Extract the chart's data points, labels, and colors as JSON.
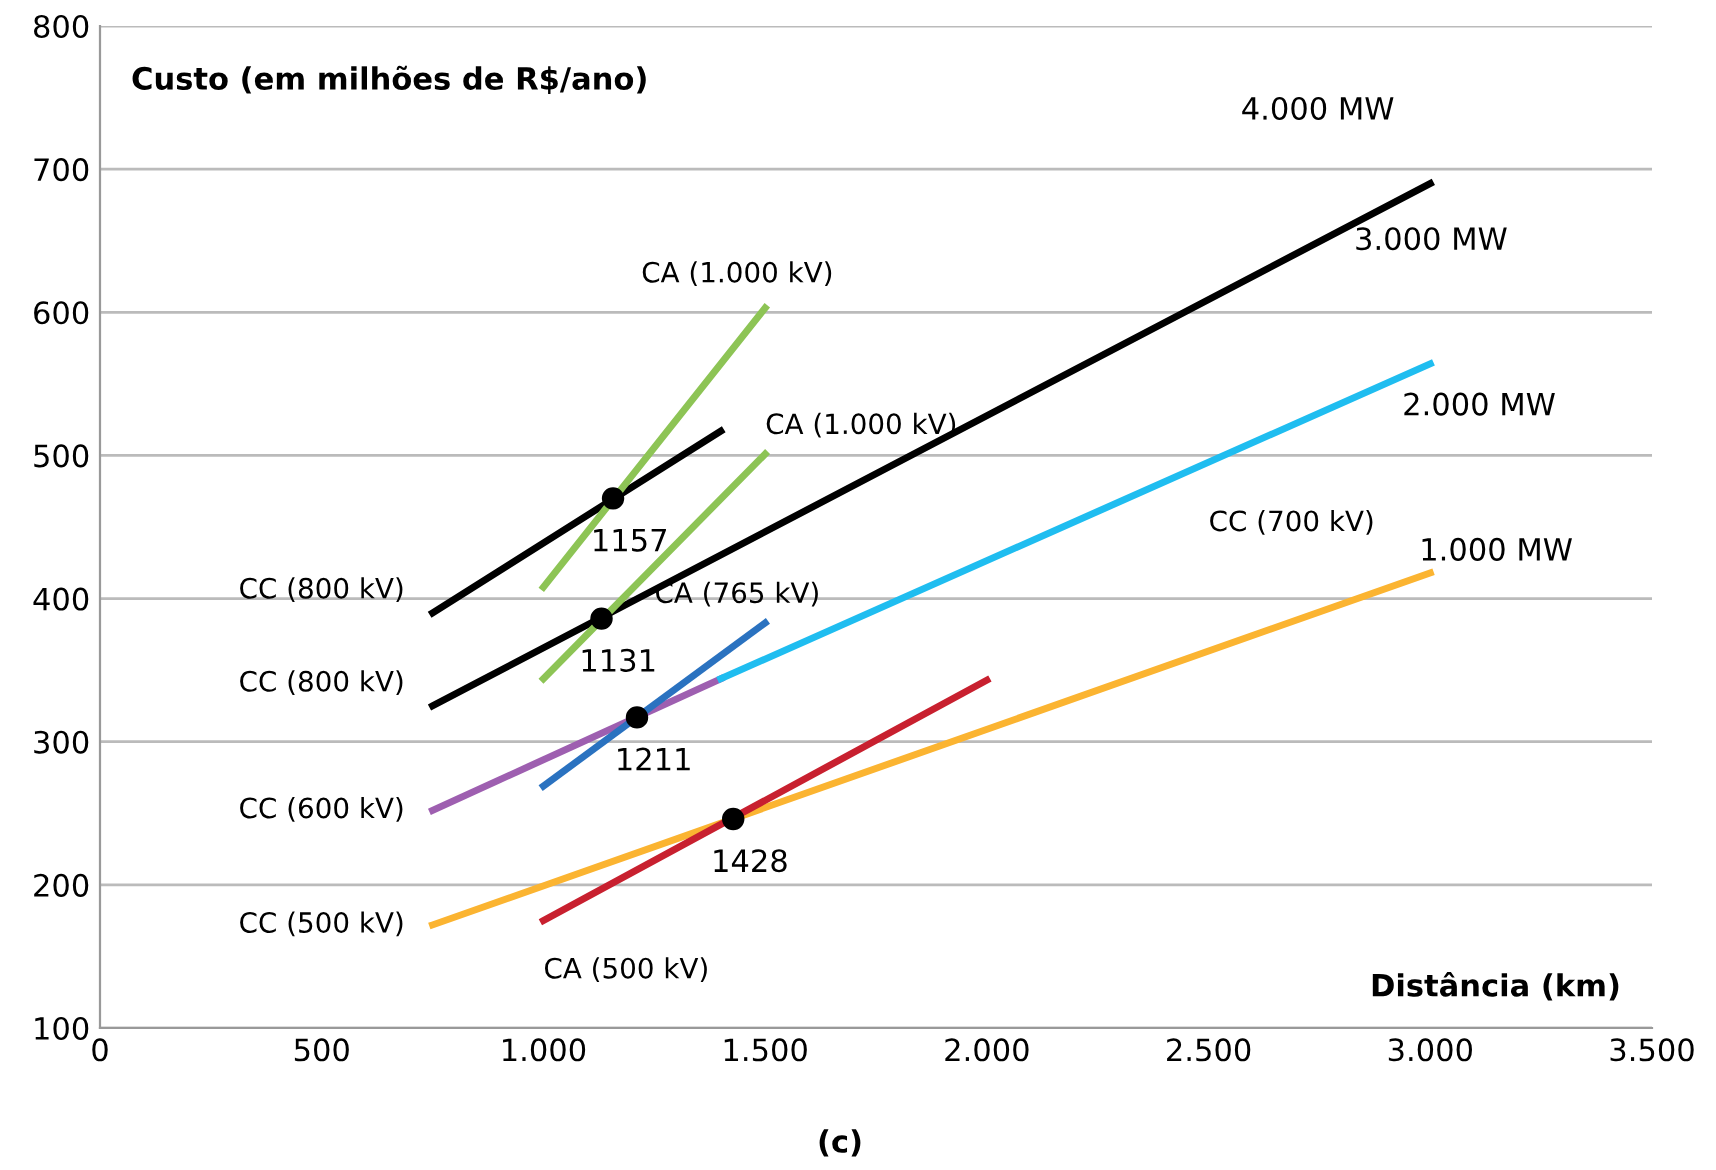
{
  "chart_data": {
    "type": "line",
    "ylabel": "Custo (em milhões de R$/ano)",
    "xlabel": "Distância (km)",
    "xlim": [
      0,
      3500
    ],
    "xticks": [
      0,
      500,
      {
        "value": 1000,
        "label": "1.000"
      },
      {
        "value": 1500,
        "label": "1.500"
      },
      {
        "value": 2000,
        "label": "2.000"
      },
      {
        "value": 2500,
        "label": "2.500"
      },
      {
        "value": 3000,
        "label": "3.000"
      },
      {
        "value": 3500,
        "label": "3.500"
      }
    ],
    "ylim": [
      100,
      800
    ],
    "yticks": [
      100,
      200,
      300,
      400,
      500,
      600,
      700,
      800
    ],
    "grid": "y",
    "legend": false,
    "marker": "none",
    "line_style": "solid",
    "series": [
      {
        "name": "CC (800 kV)",
        "color": "#000000",
        "x": [
          750,
          1400
        ],
        "values": [
          390,
          517
        ]
      },
      {
        "name": "CC (800 kV)",
        "color": "#000000",
        "x": [
          750,
          3000
        ],
        "values": [
          325,
          690
        ]
      },
      {
        "name": "CA (1.000 kV)",
        "color": "#8dc455",
        "x": [
          1000,
          1500
        ],
        "values": [
          408,
          603
        ]
      },
      {
        "name": "CA (1.000 kV)",
        "color": "#8dc455",
        "x": [
          1000,
          1500
        ],
        "values": [
          344,
          501
        ]
      },
      {
        "name": "CC (600 kV)",
        "color": "#9e5fb0",
        "x": [
          750,
          1400
        ],
        "values": [
          252,
          344
        ]
      },
      {
        "name": "CC (700 kV)",
        "color": "#1fbdf0",
        "x": [
          1400,
          3000
        ],
        "values": [
          344,
          564
        ]
      },
      {
        "name": "CA (765 kV)",
        "color": "#2a72c0",
        "x": [
          1000,
          1500
        ],
        "values": [
          269,
          383
        ]
      },
      {
        "name": "CC (500 kV)",
        "color": "#fbb431",
        "x": [
          750,
          3000
        ],
        "values": [
          172,
          418
        ]
      },
      {
        "name": "CA (500 kV)",
        "color": "#c8202f",
        "x": [
          1000,
          2000
        ],
        "values": [
          175,
          343
        ]
      },
      {
        "type": "scatter",
        "color": "#000000",
        "marker": "circle",
        "x": [
          1157,
          1131,
          1211,
          1428
        ],
        "values": [
          470,
          386,
          317,
          246
        ]
      }
    ],
    "annotations": [
      "4.000 MW",
      "3.000 MW",
      "2.000 MW",
      "1.000 MW",
      {
        "text": "1157",
        "x": 1157,
        "y": 470
      },
      {
        "text": "1131",
        "x": 1131,
        "y": 386
      },
      {
        "text": "1211",
        "x": 1211,
        "y": 317
      },
      {
        "text": "1428",
        "x": 1428,
        "y": 246
      },
      "(c)"
    ]
  }
}
